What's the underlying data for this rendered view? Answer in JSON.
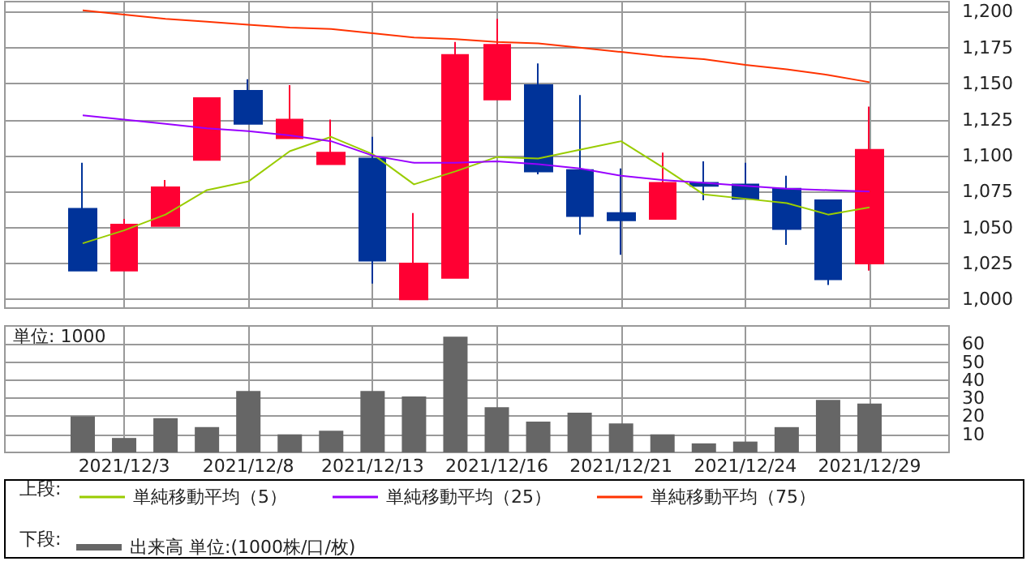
{
  "chart_data": [
    {
      "type": "candlestick",
      "categories": [
        null,
        "2021/12/3",
        null,
        null,
        "2021/12/8",
        null,
        null,
        "2021/12/13",
        null,
        null,
        "2021/12/16",
        null,
        null,
        "2021/12/21",
        null,
        null,
        "2021/12/24",
        null,
        null,
        "2021/12/29"
      ],
      "ohlc": [
        [
          1063,
          1095,
          1020,
          1020
        ],
        [
          1020,
          1056,
          1020,
          1052
        ],
        [
          1051,
          1083,
          1051,
          1078
        ],
        [
          1097,
          1140,
          1097,
          1140
        ],
        [
          1145,
          1153,
          1122,
          1122
        ],
        [
          1112,
          1149,
          1112,
          1125
        ],
        [
          1094,
          1125,
          1094,
          1102
        ],
        [
          1098,
          1113,
          1011,
          1027
        ],
        [
          1000,
          1060,
          1000,
          1025
        ],
        [
          1015,
          1179,
          1015,
          1170
        ],
        [
          1139,
          1195,
          1139,
          1177
        ],
        [
          1149,
          1164,
          1087,
          1089
        ],
        [
          1090,
          1142,
          1045,
          1058
        ],
        [
          1060,
          1091,
          1031,
          1055
        ],
        [
          1056,
          1102,
          1056,
          1081
        ],
        [
          1081,
          1096,
          1069,
          1079
        ],
        [
          1080,
          1095,
          1070,
          1070
        ],
        [
          1077,
          1086,
          1038,
          1049
        ],
        [
          1069,
          1069,
          1010,
          1014
        ],
        [
          1025,
          1134,
          1020,
          1104
        ]
      ],
      "colors": [
        "#003399",
        "#ff0033",
        "#ff0033",
        "#ff0033",
        "#003399",
        "#ff0033",
        "#ff0033",
        "#003399",
        "#ff0033",
        "#ff0033",
        "#ff0033",
        "#003399",
        "#003399",
        "#003399",
        "#ff0033",
        "#003399",
        "#003399",
        "#003399",
        "#003399",
        "#ff0033"
      ],
      "series": [
        {
          "name": "単純移動平均（5）",
          "type": "line",
          "color": "#99cc00",
          "values": [
            1039,
            1048,
            1059,
            1076,
            1082,
            1103,
            1113,
            1101,
            1080,
            1089,
            1099,
            1098,
            1104,
            1110,
            1092,
            1073,
            1070,
            1067,
            1059,
            1064
          ]
        },
        {
          "name": "単純移動平均（25）",
          "type": "line",
          "color": "#9900ff",
          "values": [
            1128,
            1125,
            1122,
            1119,
            1117,
            1114,
            1110,
            1100,
            1095,
            1095,
            1096,
            1094,
            1091,
            1086,
            1083,
            1081,
            1079,
            1077,
            1076,
            1075
          ]
        },
        {
          "name": "単純移動平均（75）",
          "type": "line",
          "color": "#ff3300",
          "values": [
            1201,
            1198,
            1195,
            1193,
            1191,
            1189,
            1188,
            1185,
            1182,
            1181,
            1179,
            1178,
            1175,
            1172,
            1169,
            1167,
            1163,
            1160,
            1156,
            1151
          ]
        }
      ],
      "ylim": [
        994,
        1207
      ],
      "yticks": [
        {
          "value": 1000,
          "label": "1,000"
        },
        {
          "value": 1025,
          "label": "1,025"
        },
        {
          "value": 1050,
          "label": "1,050"
        },
        {
          "value": 1075,
          "label": "1,075"
        },
        {
          "value": 1100,
          "label": "1,100"
        },
        {
          "value": 1125,
          "label": "1,125"
        },
        {
          "value": 1150,
          "label": "1,150"
        },
        {
          "value": 1175,
          "label": "1,175"
        },
        {
          "value": 1200,
          "label": "1,200"
        }
      ],
      "grid": true,
      "legend": "bottom",
      "marker": "none",
      "tick_labels": "y",
      "annotations": [
        "上段:"
      ]
    },
    {
      "type": "bar",
      "categories": [
        null,
        "2021/12/3",
        null,
        null,
        "2021/12/8",
        null,
        null,
        "2021/12/13",
        null,
        null,
        "2021/12/16",
        null,
        null,
        "2021/12/21",
        null,
        null,
        "2021/12/24",
        null,
        null,
        "2021/12/29"
      ],
      "series": [
        {
          "name": "出来高 単位:(1000株/口/枚)",
          "color": "#666666",
          "values": [
            20,
            8,
            19,
            14,
            34,
            10,
            12,
            34,
            31,
            64,
            25,
            17,
            22,
            16,
            10,
            5,
            6,
            14,
            29,
            27
          ]
        }
      ],
      "ylim": [
        0,
        70
      ],
      "yticks": [
        10,
        20,
        30,
        40,
        50,
        60
      ],
      "grid": true,
      "legend": "bottom",
      "annotations": [
        "単位: 1000",
        "下段:"
      ]
    }
  ]
}
